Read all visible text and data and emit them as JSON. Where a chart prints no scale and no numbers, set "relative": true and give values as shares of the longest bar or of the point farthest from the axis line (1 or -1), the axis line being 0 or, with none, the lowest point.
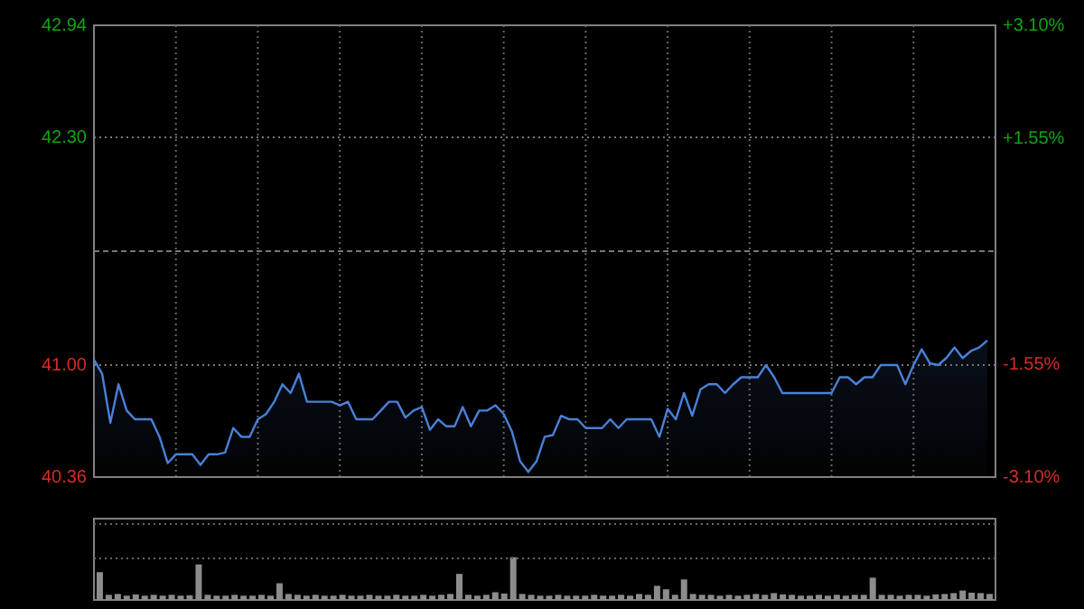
{
  "chart_data": [
    {
      "type": "area",
      "categories": [
        null,
        null,
        null,
        null,
        null,
        null,
        null,
        null,
        null,
        null,
        null,
        null,
        null,
        null,
        null,
        null,
        null,
        null,
        null,
        null,
        null,
        null,
        null,
        null,
        null,
        null,
        null,
        null,
        null,
        null,
        null,
        null,
        null,
        null,
        null,
        null,
        null,
        null,
        null,
        null,
        null,
        null,
        null,
        null,
        null,
        null,
        null,
        null,
        null,
        null,
        null,
        null,
        null,
        null,
        null,
        null,
        null,
        null,
        null,
        null,
        null,
        null,
        null,
        null,
        null,
        null,
        null,
        null,
        null,
        null,
        null,
        null,
        null,
        null,
        null,
        null,
        null,
        null,
        null,
        null,
        null,
        null,
        null,
        null,
        null,
        null,
        null,
        null,
        null,
        null,
        null,
        null,
        null,
        null,
        null,
        null,
        null,
        null,
        null,
        null,
        null,
        null,
        null,
        null,
        null,
        null,
        null,
        null,
        null,
        null
      ],
      "ylim": [
        40.36,
        42.94
      ],
      "yticks": [
        {
          "value": 40.36,
          "label": "40.36"
        },
        {
          "value": 41.0,
          "label": "41.00"
        },
        {
          "value": 41.65,
          "label": null
        },
        {
          "value": 42.3,
          "label": "42.30"
        },
        {
          "value": 42.94,
          "label": "42.94"
        }
      ],
      "y2lim": [
        -3.1,
        3.1
      ],
      "y2ticks": [
        {
          "value": -3.1,
          "label": "-3.10%"
        },
        {
          "value": -1.55,
          "label": "-1.55%"
        },
        {
          "value": 1.55,
          "label": "+1.55%"
        },
        {
          "value": 3.1,
          "label": "+3.10%"
        }
      ],
      "grid": true,
      "tick_labels": "y",
      "series": [
        {
          "color": "#4a80d8",
          "values": [
            41.03,
            40.95,
            40.67,
            40.89,
            40.74,
            40.69,
            40.69,
            40.69,
            40.59,
            40.44,
            40.49,
            40.49,
            40.49,
            40.43,
            40.49,
            40.49,
            40.5,
            40.64,
            40.59,
            40.59,
            40.69,
            40.72,
            40.79,
            40.89,
            40.84,
            40.95,
            40.79,
            40.79,
            40.79,
            40.79,
            40.77,
            40.79,
            40.69,
            40.69,
            40.69,
            40.74,
            40.79,
            40.79,
            40.7,
            40.74,
            40.76,
            40.63,
            40.69,
            40.65,
            40.65,
            40.76,
            40.65,
            40.74,
            40.74,
            40.77,
            40.72,
            40.62,
            40.45,
            40.39,
            40.45,
            40.59,
            40.6,
            40.71,
            40.69,
            40.69,
            40.64,
            40.64,
            40.64,
            40.69,
            40.64,
            40.69,
            40.69,
            40.69,
            40.69,
            40.59,
            40.75,
            40.69,
            40.84,
            40.71,
            40.86,
            40.89,
            40.89,
            40.84,
            40.89,
            40.93,
            40.93,
            40.93,
            41.0,
            40.93,
            40.84,
            40.84,
            40.84,
            40.84,
            40.84,
            40.84,
            40.84,
            40.93,
            40.93,
            40.89,
            40.93,
            40.93,
            41.0,
            41.0,
            41.0,
            40.89,
            41.0,
            41.09,
            41.01,
            41.0,
            41.04,
            41.1,
            41.04,
            41.08,
            41.1,
            41.14
          ]
        }
      ]
    },
    {
      "type": "bar",
      "relative": true,
      "tick_labels": false,
      "categories": [
        null,
        null,
        null,
        null,
        null,
        null,
        null,
        null,
        null,
        null,
        null,
        null,
        null,
        null,
        null,
        null,
        null,
        null,
        null,
        null,
        null,
        null,
        null,
        null,
        null,
        null,
        null,
        null,
        null,
        null,
        null,
        null,
        null,
        null,
        null,
        null,
        null,
        null,
        null,
        null,
        null,
        null,
        null,
        null,
        null,
        null,
        null,
        null,
        null,
        null,
        null,
        null,
        null,
        null,
        null,
        null,
        null,
        null,
        null,
        null,
        null,
        null,
        null,
        null,
        null,
        null,
        null,
        null,
        null,
        null,
        null,
        null,
        null,
        null,
        null,
        null,
        null,
        null,
        null,
        null,
        null,
        null,
        null,
        null,
        null,
        null,
        null,
        null,
        null,
        null,
        null,
        null,
        null,
        null,
        null,
        null,
        null,
        null,
        null,
        null
      ],
      "series": [
        {
          "color": "#8c8c8c",
          "values": [
            0.65,
            0.12,
            0.14,
            0.1,
            0.13,
            0.1,
            0.12,
            0.1,
            0.12,
            0.1,
            0.11,
            0.83,
            0.12,
            0.1,
            0.1,
            0.12,
            0.1,
            0.1,
            0.12,
            0.1,
            0.39,
            0.14,
            0.12,
            0.1,
            0.12,
            0.1,
            0.1,
            0.12,
            0.1,
            0.1,
            0.12,
            0.1,
            0.1,
            0.12,
            0.1,
            0.1,
            0.12,
            0.1,
            0.12,
            0.14,
            0.61,
            0.12,
            0.1,
            0.12,
            0.18,
            0.15,
            1.0,
            0.14,
            0.12,
            0.1,
            0.1,
            0.12,
            0.1,
            0.1,
            0.1,
            0.12,
            0.1,
            0.1,
            0.12,
            0.1,
            0.14,
            0.12,
            0.33,
            0.25,
            0.12,
            0.48,
            0.14,
            0.12,
            0.12,
            0.1,
            0.12,
            0.1,
            0.12,
            0.14,
            0.12,
            0.16,
            0.13,
            0.12,
            0.1,
            0.1,
            0.12,
            0.1,
            0.12,
            0.1,
            0.12,
            0.12,
            0.52,
            0.12,
            0.12,
            0.1,
            0.12,
            0.12,
            0.1,
            0.13,
            0.14,
            0.16,
            0.22,
            0.17,
            0.16,
            0.14
          ]
        }
      ]
    }
  ]
}
